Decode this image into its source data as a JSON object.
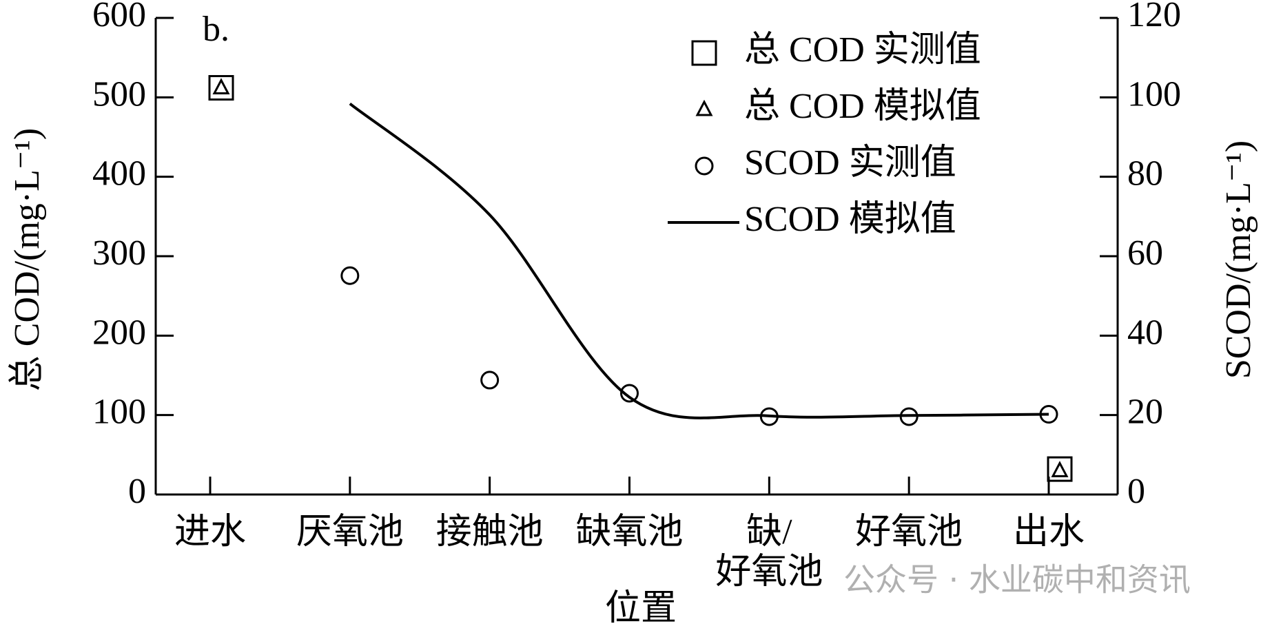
{
  "chart_data": {
    "type": "line",
    "annotation": "b.",
    "x_label": "位置",
    "y_label": "总 COD/(mg·L⁻¹)",
    "y2_label": "SCOD/(mg·L⁻¹)",
    "categories": [
      "进水",
      "厌氧池",
      "接触池",
      "缺氧池",
      "缺/\n好氧池",
      "好氧池",
      "出水"
    ],
    "series": [
      {
        "name": "总 COD 实测值",
        "marker": "square",
        "color": "#000000",
        "values": [
          512,
          null,
          null,
          null,
          null,
          null,
          32
        ]
      },
      {
        "name": "总 COD 模拟值",
        "marker": "triangle",
        "color": "#000000",
        "values": [
          512,
          null,
          null,
          null,
          null,
          null,
          30
        ]
      },
      {
        "name": "SCOD 实测值",
        "marker": "circle",
        "color": "#000000",
        "axis": "y2",
        "values": [
          null,
          55.1,
          28.8,
          25.5,
          19.6,
          19.6,
          20.2
        ]
      },
      {
        "name": "SCOD 模拟值",
        "marker": "line",
        "color": "#000000",
        "axis": "y2",
        "values": [
          null,
          98.4,
          70.4,
          24.5,
          19.8,
          19.9,
          20.2
        ]
      }
    ],
    "ylim": [
      0,
      600
    ],
    "yticks": [
      0,
      100,
      200,
      300,
      400,
      500,
      600
    ],
    "y2lim": [
      0,
      120
    ],
    "y2ticks": [
      0,
      20,
      40,
      60,
      80,
      100,
      120
    ],
    "legend": "upper right",
    "watermark": "公众号 · 水业碳中和资讯"
  }
}
